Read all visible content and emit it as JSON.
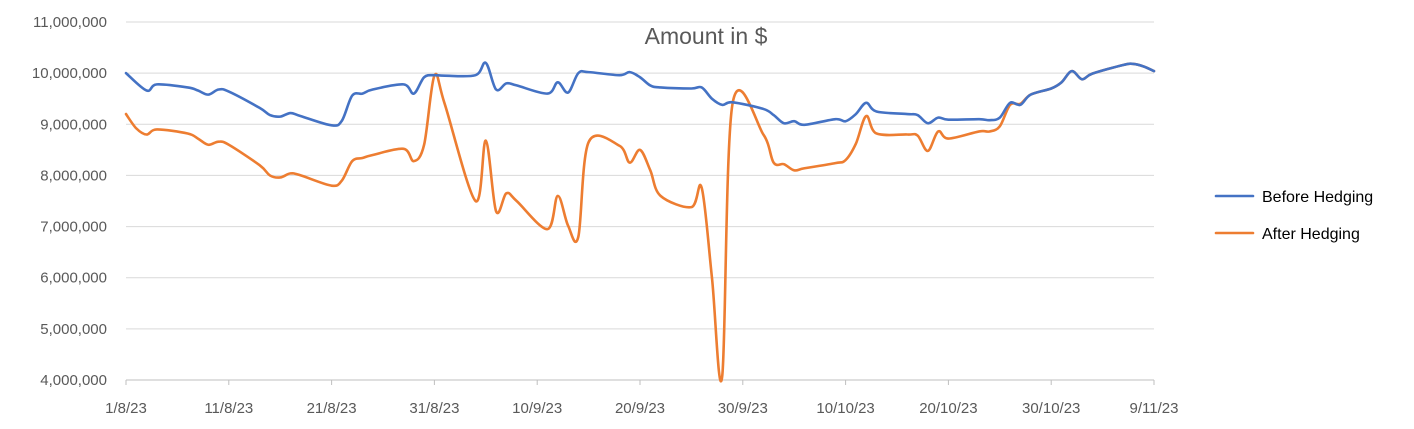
{
  "chart_data": {
    "type": "line",
    "title": "Amount in $",
    "xlabel": "",
    "ylabel": "",
    "ylim": [
      4000000,
      11000000
    ],
    "y_ticks": [
      4000000,
      5000000,
      6000000,
      7000000,
      8000000,
      9000000,
      10000000,
      11000000
    ],
    "y_tick_labels": [
      "4,000,000",
      "5,000,000",
      "6,000,000",
      "7,000,000",
      "8,000,000",
      "9,000,000",
      "10,000,000",
      "11,000,000"
    ],
    "x_range": [
      "2023-08-01",
      "2023-11-09"
    ],
    "x_ticks": [
      "2023-08-01",
      "2023-08-11",
      "2023-08-21",
      "2023-08-31",
      "2023-09-10",
      "2023-09-20",
      "2023-09-30",
      "2023-10-10",
      "2023-10-20",
      "2023-10-30",
      "2023-11-09"
    ],
    "x_tick_labels": [
      "1/8/23",
      "11/8/23",
      "21/8/23",
      "31/8/23",
      "10/9/23",
      "20/9/23",
      "30/9/23",
      "10/10/23",
      "20/10/23",
      "30/10/23",
      "9/11/23"
    ],
    "grid": true,
    "legend_position": "right",
    "series": [
      {
        "name": "Before Hedging",
        "color": "#4472c4",
        "points": [
          [
            "2023-08-01",
            10000000
          ],
          [
            "2023-08-03",
            9660000
          ],
          [
            "2023-08-04",
            9780000
          ],
          [
            "2023-08-07",
            9720000
          ],
          [
            "2023-08-08",
            9660000
          ],
          [
            "2023-08-09",
            9580000
          ],
          [
            "2023-08-10",
            9680000
          ],
          [
            "2023-08-11",
            9640000
          ],
          [
            "2023-08-14",
            9320000
          ],
          [
            "2023-08-15",
            9180000
          ],
          [
            "2023-08-16",
            9150000
          ],
          [
            "2023-08-17",
            9220000
          ],
          [
            "2023-08-18",
            9160000
          ],
          [
            "2023-08-21",
            8980000
          ],
          [
            "2023-08-22",
            9070000
          ],
          [
            "2023-08-23",
            9560000
          ],
          [
            "2023-08-24",
            9600000
          ],
          [
            "2023-08-25",
            9680000
          ],
          [
            "2023-08-28",
            9780000
          ],
          [
            "2023-08-29",
            9600000
          ],
          [
            "2023-08-30",
            9920000
          ],
          [
            "2023-08-31",
            9960000
          ],
          [
            "2023-09-01",
            9950000
          ],
          [
            "2023-09-04",
            9960000
          ],
          [
            "2023-09-05",
            10200000
          ],
          [
            "2023-09-06",
            9680000
          ],
          [
            "2023-09-07",
            9800000
          ],
          [
            "2023-09-08",
            9760000
          ],
          [
            "2023-09-11",
            9600000
          ],
          [
            "2023-09-12",
            9820000
          ],
          [
            "2023-09-13",
            9620000
          ],
          [
            "2023-09-14",
            10000000
          ],
          [
            "2023-09-15",
            10020000
          ],
          [
            "2023-09-18",
            9960000
          ],
          [
            "2023-09-19",
            10020000
          ],
          [
            "2023-09-20",
            9920000
          ],
          [
            "2023-09-21",
            9760000
          ],
          [
            "2023-09-22",
            9720000
          ],
          [
            "2023-09-25",
            9700000
          ],
          [
            "2023-09-26",
            9720000
          ],
          [
            "2023-09-27",
            9500000
          ],
          [
            "2023-09-28",
            9380000
          ],
          [
            "2023-09-29",
            9430000
          ],
          [
            "2023-10-02",
            9300000
          ],
          [
            "2023-10-03",
            9180000
          ],
          [
            "2023-10-04",
            9020000
          ],
          [
            "2023-10-05",
            9060000
          ],
          [
            "2023-10-06",
            8990000
          ],
          [
            "2023-10-09",
            9100000
          ],
          [
            "2023-10-10",
            9060000
          ],
          [
            "2023-10-11",
            9200000
          ],
          [
            "2023-10-12",
            9420000
          ],
          [
            "2023-10-13",
            9250000
          ],
          [
            "2023-10-16",
            9200000
          ],
          [
            "2023-10-17",
            9180000
          ],
          [
            "2023-10-18",
            9020000
          ],
          [
            "2023-10-19",
            9130000
          ],
          [
            "2023-10-20",
            9090000
          ],
          [
            "2023-10-23",
            9100000
          ],
          [
            "2023-10-24",
            9080000
          ],
          [
            "2023-10-25",
            9130000
          ],
          [
            "2023-10-26",
            9420000
          ],
          [
            "2023-10-27",
            9380000
          ],
          [
            "2023-10-28",
            9580000
          ],
          [
            "2023-10-30",
            9700000
          ],
          [
            "2023-10-31",
            9820000
          ],
          [
            "2023-11-01",
            10040000
          ],
          [
            "2023-11-02",
            9880000
          ],
          [
            "2023-11-03",
            9990000
          ],
          [
            "2023-11-06",
            10160000
          ],
          [
            "2023-11-07",
            10180000
          ],
          [
            "2023-11-08",
            10130000
          ],
          [
            "2023-11-09",
            10040000
          ]
        ]
      },
      {
        "name": "After Hedging",
        "color": "#ed7d31",
        "points": [
          [
            "2023-08-01",
            9200000
          ],
          [
            "2023-08-02",
            8920000
          ],
          [
            "2023-08-03",
            8800000
          ],
          [
            "2023-08-04",
            8900000
          ],
          [
            "2023-08-07",
            8820000
          ],
          [
            "2023-08-08",
            8720000
          ],
          [
            "2023-08-09",
            8600000
          ],
          [
            "2023-08-10",
            8660000
          ],
          [
            "2023-08-11",
            8600000
          ],
          [
            "2023-08-14",
            8200000
          ],
          [
            "2023-08-15",
            8000000
          ],
          [
            "2023-08-16",
            7960000
          ],
          [
            "2023-08-17",
            8040000
          ],
          [
            "2023-08-18",
            8000000
          ],
          [
            "2023-08-21",
            7800000
          ],
          [
            "2023-08-22",
            7900000
          ],
          [
            "2023-08-23",
            8280000
          ],
          [
            "2023-08-24",
            8340000
          ],
          [
            "2023-08-25",
            8400000
          ],
          [
            "2023-08-28",
            8520000
          ],
          [
            "2023-08-29",
            8280000
          ],
          [
            "2023-08-30",
            8600000
          ],
          [
            "2023-08-31",
            9950000
          ],
          [
            "2023-09-01",
            9400000
          ],
          [
            "2023-09-04",
            7500000
          ],
          [
            "2023-09-05",
            8680000
          ],
          [
            "2023-09-06",
            7300000
          ],
          [
            "2023-09-07",
            7650000
          ],
          [
            "2023-09-08",
            7500000
          ],
          [
            "2023-09-11",
            6950000
          ],
          [
            "2023-09-12",
            7600000
          ],
          [
            "2023-09-13",
            7020000
          ],
          [
            "2023-09-14",
            6800000
          ],
          [
            "2023-09-15",
            8650000
          ],
          [
            "2023-09-18",
            8580000
          ],
          [
            "2023-09-19",
            8250000
          ],
          [
            "2023-09-20",
            8500000
          ],
          [
            "2023-09-21",
            8100000
          ],
          [
            "2023-09-22",
            7600000
          ],
          [
            "2023-09-25",
            7380000
          ],
          [
            "2023-09-26",
            7760000
          ],
          [
            "2023-09-27",
            6000000
          ],
          [
            "2023-09-28",
            4080000
          ],
          [
            "2023-09-29",
            9400000
          ],
          [
            "2023-10-02",
            8800000
          ],
          [
            "2023-10-03",
            8250000
          ],
          [
            "2023-10-04",
            8220000
          ],
          [
            "2023-10-05",
            8100000
          ],
          [
            "2023-10-06",
            8140000
          ],
          [
            "2023-10-09",
            8240000
          ],
          [
            "2023-10-10",
            8300000
          ],
          [
            "2023-10-11",
            8620000
          ],
          [
            "2023-10-12",
            9160000
          ],
          [
            "2023-10-13",
            8820000
          ],
          [
            "2023-10-16",
            8800000
          ],
          [
            "2023-10-17",
            8780000
          ],
          [
            "2023-10-18",
            8480000
          ],
          [
            "2023-10-19",
            8860000
          ],
          [
            "2023-10-20",
            8720000
          ],
          [
            "2023-10-23",
            8860000
          ],
          [
            "2023-10-24",
            8860000
          ],
          [
            "2023-10-25",
            8960000
          ],
          [
            "2023-10-26",
            9380000
          ],
          [
            "2023-10-27",
            9400000
          ],
          [
            "2023-10-28",
            9580000
          ],
          [
            "2023-10-30",
            9700000
          ],
          [
            "2023-10-31",
            9820000
          ],
          [
            "2023-11-01",
            10040000
          ],
          [
            "2023-11-02",
            9880000
          ],
          [
            "2023-11-03",
            9990000
          ],
          [
            "2023-11-06",
            10160000
          ],
          [
            "2023-11-07",
            10180000
          ],
          [
            "2023-11-08",
            10130000
          ],
          [
            "2023-11-09",
            10040000
          ]
        ]
      }
    ]
  }
}
